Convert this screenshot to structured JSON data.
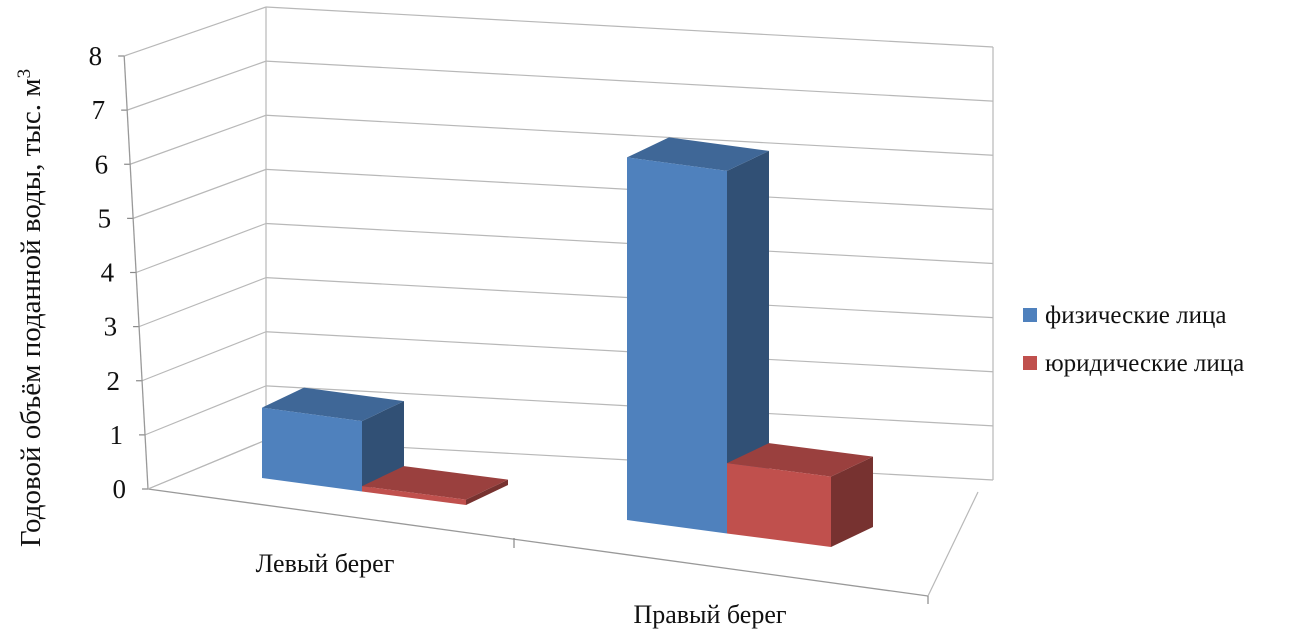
{
  "chart_data": {
    "type": "bar",
    "view": "3d-clustered-column",
    "categories": [
      "Левый берег",
      "Правый берег"
    ],
    "series": [
      {
        "name": "физические лица",
        "values": [
          1.3,
          6.7
        ],
        "color": "#4F81BD"
      },
      {
        "name": "юридические лица",
        "values": [
          0.1,
          1.3
        ],
        "color": "#C0504D"
      }
    ],
    "ylabel": "Годовой объём поданной воды, тыс. м",
    "ylabel_superscript": "3",
    "ylim": [
      0,
      8
    ],
    "yticks": [
      "0",
      "1",
      "2",
      "3",
      "4",
      "5",
      "6",
      "7",
      "8"
    ],
    "grid": true,
    "legend_position": "right"
  }
}
